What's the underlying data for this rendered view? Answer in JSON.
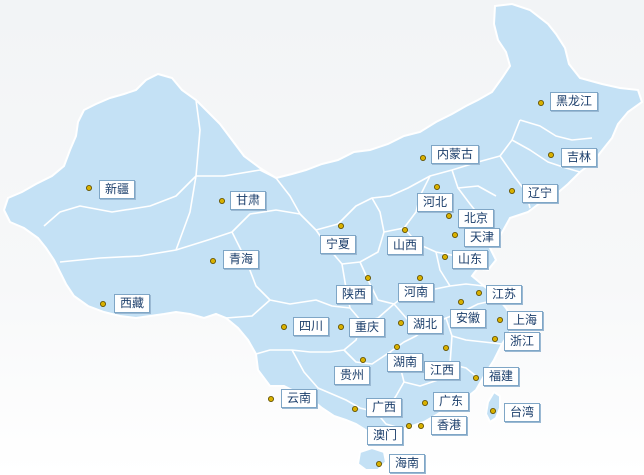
{
  "map": {
    "colors": {
      "land": "#c4e1f5",
      "borders": "#ffffff",
      "label_text": "#1b3e6b",
      "label_border": "#7fa6c6",
      "dot": "#d8b000"
    },
    "provinces": [
      {
        "id": "heilongjiang",
        "name": "黑龙江"
      },
      {
        "id": "jilin",
        "name": "吉林"
      },
      {
        "id": "liaoning",
        "name": "辽宁"
      },
      {
        "id": "neimenggu",
        "name": "内蒙古"
      },
      {
        "id": "xinjiang",
        "name": "新疆"
      },
      {
        "id": "gansu",
        "name": "甘肃"
      },
      {
        "id": "hebei",
        "name": "河北"
      },
      {
        "id": "beijing",
        "name": "北京"
      },
      {
        "id": "tianjin",
        "name": "天津"
      },
      {
        "id": "ningxia",
        "name": "宁夏"
      },
      {
        "id": "shanxi",
        "name": "山西"
      },
      {
        "id": "qinghai",
        "name": "青海"
      },
      {
        "id": "shandong",
        "name": "山东"
      },
      {
        "id": "xizang",
        "name": "西藏"
      },
      {
        "id": "shaanxi",
        "name": "陕西"
      },
      {
        "id": "henan",
        "name": "河南"
      },
      {
        "id": "jiangsu",
        "name": "江苏"
      },
      {
        "id": "anhui",
        "name": "安徽"
      },
      {
        "id": "shanghai",
        "name": "上海"
      },
      {
        "id": "sichuan",
        "name": "四川"
      },
      {
        "id": "chongqing",
        "name": "重庆"
      },
      {
        "id": "hubei",
        "name": "湖北"
      },
      {
        "id": "zhejiang",
        "name": "浙江"
      },
      {
        "id": "hunan",
        "name": "湖南"
      },
      {
        "id": "guizhou",
        "name": "贵州"
      },
      {
        "id": "jiangxi",
        "name": "江西"
      },
      {
        "id": "fujian",
        "name": "福建"
      },
      {
        "id": "yunnan",
        "name": "云南"
      },
      {
        "id": "guangdong",
        "name": "广东"
      },
      {
        "id": "guangxi",
        "name": "广西"
      },
      {
        "id": "taiwan",
        "name": "台湾"
      },
      {
        "id": "aomen",
        "name": "澳门"
      },
      {
        "id": "xianggang",
        "name": "香港"
      },
      {
        "id": "hainan",
        "name": "海南"
      }
    ]
  }
}
